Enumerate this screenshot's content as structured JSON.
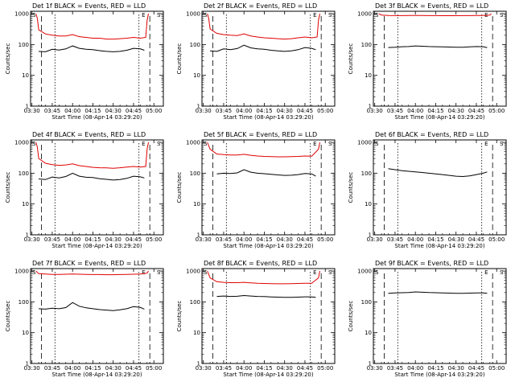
{
  "figure": {
    "colors": {
      "events": "#000000",
      "lld": "#e00000"
    },
    "marker_start": "S",
    "marker_end": "E",
    "ylabel": "Counts/sec",
    "xlabel": "Start Time (08-Apr-14 03:29:20)",
    "x_ticks": [
      "03:30",
      "03:45",
      "04:00",
      "04:15",
      "04:30",
      "04:45",
      "05:00"
    ],
    "y_ticks": [
      "1",
      "10",
      "100",
      "1000"
    ]
  },
  "chart_data": [
    {
      "type": "line",
      "title": "Det 1f BLACK = Events, RED = LLD",
      "xlabel": "Start Time (08-Apr-14 03:29:20)",
      "ylabel": "Counts/sec",
      "ylog": true,
      "xlim": [
        "03:29",
        "05:07"
      ],
      "ylim": [
        1,
        1200
      ],
      "lines_dashed": [
        "03:37",
        "04:57"
      ],
      "lines_dotted": [
        "03:47",
        "04:49"
      ],
      "series": [
        {
          "name": "Events",
          "color": "#000000",
          "x": [
            "03:35",
            "03:40",
            "03:45",
            "03:50",
            "03:55",
            "04:00",
            "04:05",
            "04:10",
            "04:15",
            "04:20",
            "04:25",
            "04:30",
            "04:35",
            "04:40",
            "04:45",
            "04:50",
            "04:53"
          ],
          "y": [
            60,
            58,
            70,
            66,
            72,
            90,
            75,
            70,
            68,
            63,
            60,
            58,
            60,
            65,
            75,
            72,
            65
          ]
        },
        {
          "name": "LLD",
          "color": "#e00000",
          "x": [
            "03:33",
            "03:34",
            "03:35",
            "03:40",
            "03:45",
            "03:50",
            "03:55",
            "04:00",
            "04:05",
            "04:10",
            "04:15",
            "04:20",
            "04:25",
            "04:30",
            "04:35",
            "04:40",
            "04:45",
            "04:50",
            "04:54",
            "04:55",
            "04:56"
          ],
          "y": [
            1000,
            700,
            300,
            220,
            200,
            190,
            190,
            210,
            180,
            170,
            160,
            160,
            150,
            150,
            155,
            160,
            170,
            160,
            170,
            600,
            1000
          ]
        }
      ]
    },
    {
      "type": "line",
      "title": "Det 2f BLACK = Events, RED = LLD",
      "xlabel": "Start Time (08-Apr-14 03:29:20)",
      "ylabel": "Counts/sec",
      "ylog": true,
      "xlim": [
        "03:29",
        "05:07"
      ],
      "ylim": [
        1,
        1200
      ],
      "lines_dashed": [
        "03:37",
        "04:57"
      ],
      "lines_dotted": [
        "03:47",
        "04:49"
      ],
      "series": [
        {
          "name": "Events",
          "color": "#000000",
          "x": [
            "03:35",
            "03:40",
            "03:45",
            "03:50",
            "03:55",
            "04:00",
            "04:05",
            "04:10",
            "04:15",
            "04:20",
            "04:25",
            "04:30",
            "04:35",
            "04:40",
            "04:45",
            "04:50",
            "04:53"
          ],
          "y": [
            62,
            60,
            72,
            68,
            74,
            95,
            78,
            72,
            70,
            65,
            62,
            60,
            62,
            68,
            80,
            75,
            68
          ]
        },
        {
          "name": "LLD",
          "color": "#e00000",
          "x": [
            "03:33",
            "03:34",
            "03:35",
            "03:40",
            "03:45",
            "03:50",
            "03:55",
            "04:00",
            "04:05",
            "04:10",
            "04:15",
            "04:20",
            "04:25",
            "04:30",
            "04:35",
            "04:40",
            "04:45",
            "04:50",
            "04:54",
            "04:55",
            "04:56"
          ],
          "y": [
            1000,
            700,
            320,
            230,
            210,
            200,
            195,
            220,
            190,
            175,
            165,
            160,
            155,
            150,
            155,
            165,
            175,
            165,
            175,
            620,
            1000
          ]
        }
      ]
    },
    {
      "type": "line",
      "title": "Det 3f BLACK = Events, RED = LLD",
      "xlabel": "Start Time (08-Apr-14 03:29:20)",
      "ylabel": "Counts/sec",
      "ylog": true,
      "xlim": [
        "03:29",
        "05:07"
      ],
      "ylim": [
        1,
        1200
      ],
      "lines_dashed": [
        "03:37",
        "04:57"
      ],
      "lines_dotted": [
        "03:47",
        "04:49"
      ],
      "series": [
        {
          "name": "Events",
          "color": "#000000",
          "x": [
            "03:40",
            "03:45",
            "03:50",
            "03:55",
            "04:00",
            "04:05",
            "04:10",
            "04:15",
            "04:20",
            "04:25",
            "04:30",
            "04:35",
            "04:40",
            "04:45",
            "04:50",
            "04:53"
          ],
          "y": [
            80,
            82,
            85,
            86,
            90,
            88,
            86,
            85,
            84,
            83,
            82,
            82,
            84,
            86,
            85,
            80
          ]
        },
        {
          "name": "LLD",
          "color": "#e00000",
          "x": [
            "03:33",
            "03:35",
            "03:40",
            "03:45",
            "03:50",
            "03:55",
            "04:00",
            "04:05",
            "04:10",
            "04:15",
            "04:20",
            "04:25",
            "04:30",
            "04:35",
            "04:40",
            "04:45",
            "04:50",
            "04:55",
            "04:56"
          ],
          "y": [
            1000,
            900,
            880,
            870,
            870,
            875,
            880,
            875,
            870,
            865,
            860,
            860,
            860,
            865,
            870,
            875,
            880,
            900,
            1000
          ]
        }
      ]
    },
    {
      "type": "line",
      "title": "Det 4f BLACK = Events, RED = LLD",
      "xlabel": "Start Time (08-Apr-14 03:29:20)",
      "ylabel": "Counts/sec",
      "ylog": true,
      "xlim": [
        "03:29",
        "05:07"
      ],
      "ylim": [
        1,
        1200
      ],
      "lines_dashed": [
        "03:37",
        "04:57"
      ],
      "lines_dotted": [
        "03:47",
        "04:49"
      ],
      "series": [
        {
          "name": "Events",
          "color": "#000000",
          "x": [
            "03:35",
            "03:40",
            "03:45",
            "03:50",
            "03:55",
            "04:00",
            "04:05",
            "04:10",
            "04:15",
            "04:20",
            "04:25",
            "04:30",
            "04:35",
            "04:40",
            "04:45",
            "04:50",
            "04:53"
          ],
          "y": [
            65,
            62,
            75,
            70,
            78,
            100,
            80,
            74,
            72,
            66,
            63,
            60,
            62,
            68,
            80,
            76,
            70
          ]
        },
        {
          "name": "LLD",
          "color": "#e00000",
          "x": [
            "03:33",
            "03:34",
            "03:35",
            "03:40",
            "03:45",
            "03:50",
            "03:55",
            "04:00",
            "04:05",
            "04:10",
            "04:15",
            "04:20",
            "04:25",
            "04:30",
            "04:35",
            "04:40",
            "04:45",
            "04:50",
            "04:54",
            "04:55",
            "04:56"
          ],
          "y": [
            1000,
            700,
            300,
            210,
            190,
            180,
            185,
            200,
            175,
            165,
            155,
            150,
            148,
            145,
            150,
            158,
            165,
            158,
            165,
            600,
            1000
          ]
        }
      ]
    },
    {
      "type": "line",
      "title": "Det 5f BLACK = Events, RED = LLD",
      "xlabel": "Start Time (08-Apr-14 03:29:20)",
      "ylabel": "Counts/sec",
      "ylog": true,
      "xlim": [
        "03:29",
        "05:07"
      ],
      "ylim": [
        1,
        1200
      ],
      "lines_dashed": [
        "03:37",
        "04:57"
      ],
      "lines_dotted": [
        "03:47",
        "04:49"
      ],
      "series": [
        {
          "name": "Events",
          "color": "#000000",
          "x": [
            "03:40",
            "03:45",
            "03:50",
            "03:55",
            "04:00",
            "04:05",
            "04:10",
            "04:15",
            "04:20",
            "04:25",
            "04:30",
            "04:35",
            "04:40",
            "04:45",
            "04:50",
            "04:53"
          ],
          "y": [
            95,
            100,
            98,
            102,
            130,
            108,
            100,
            96,
            92,
            88,
            85,
            86,
            90,
            98,
            95,
            80
          ]
        },
        {
          "name": "LLD",
          "color": "#e00000",
          "x": [
            "03:33",
            "03:35",
            "03:40",
            "03:45",
            "03:50",
            "03:55",
            "04:00",
            "04:05",
            "04:10",
            "04:15",
            "04:20",
            "04:25",
            "04:30",
            "04:35",
            "04:40",
            "04:45",
            "04:50",
            "04:55",
            "04:56"
          ],
          "y": [
            1000,
            600,
            420,
            400,
            390,
            390,
            410,
            380,
            360,
            350,
            345,
            340,
            340,
            345,
            350,
            360,
            355,
            600,
            1000
          ]
        }
      ]
    },
    {
      "type": "line",
      "title": "Det 6f BLACK = Events, RED = LLD",
      "xlabel": "Start Time (08-Apr-14 03:29:20)",
      "ylabel": "Counts/sec",
      "ylog": true,
      "xlim": [
        "03:29",
        "05:07"
      ],
      "ylim": [
        1,
        1200
      ],
      "lines_dashed": [
        "03:37",
        "04:57"
      ],
      "lines_dotted": [
        "03:47",
        "04:49"
      ],
      "series": [
        {
          "name": "Events",
          "color": "#000000",
          "x": [
            "03:40",
            "03:45",
            "03:50",
            "03:55",
            "04:00",
            "04:05",
            "04:10",
            "04:15",
            "04:20",
            "04:25",
            "04:30",
            "04:35",
            "04:40",
            "04:45",
            "04:50",
            "04:53"
          ],
          "y": [
            140,
            130,
            120,
            115,
            110,
            105,
            100,
            95,
            90,
            85,
            80,
            78,
            82,
            90,
            100,
            110
          ]
        }
      ]
    },
    {
      "type": "line",
      "title": "Det 7f BLACK = Events, RED = LLD",
      "xlabel": "Start Time (08-Apr-14 03:29:20)",
      "ylabel": "Counts/sec",
      "ylog": true,
      "xlim": [
        "03:29",
        "05:07"
      ],
      "ylim": [
        1,
        1200
      ],
      "lines_dashed": [
        "03:37",
        "04:57"
      ],
      "lines_dotted": [
        "03:47",
        "04:49"
      ],
      "series": [
        {
          "name": "Events",
          "color": "#000000",
          "x": [
            "03:35",
            "03:40",
            "03:45",
            "03:50",
            "03:55",
            "04:00",
            "04:05",
            "04:10",
            "04:15",
            "04:20",
            "04:25",
            "04:30",
            "04:35",
            "04:40",
            "04:45",
            "04:50",
            "04:53"
          ],
          "y": [
            60,
            58,
            62,
            60,
            65,
            95,
            72,
            64,
            60,
            56,
            54,
            52,
            55,
            60,
            70,
            66,
            58
          ]
        },
        {
          "name": "LLD",
          "color": "#e00000",
          "x": [
            "03:33",
            "03:35",
            "03:40",
            "03:45",
            "03:50",
            "03:55",
            "04:00",
            "04:05",
            "04:10",
            "04:15",
            "04:20",
            "04:25",
            "04:30",
            "04:35",
            "04:40",
            "04:45",
            "04:50",
            "04:55",
            "04:56"
          ],
          "y": [
            1000,
            820,
            800,
            780,
            780,
            790,
            800,
            790,
            780,
            770,
            770,
            760,
            760,
            770,
            780,
            790,
            800,
            850,
            1000
          ]
        }
      ]
    },
    {
      "type": "line",
      "title": "Det 8f BLACK = Events, RED = LLD",
      "xlabel": "Start Time (08-Apr-14 03:29:20)",
      "ylabel": "Counts/sec",
      "ylog": true,
      "xlim": [
        "03:29",
        "05:07"
      ],
      "ylim": [
        1,
        1200
      ],
      "lines_dashed": [
        "03:37",
        "04:57"
      ],
      "lines_dotted": [
        "03:47",
        "04:49"
      ],
      "series": [
        {
          "name": "Events",
          "color": "#000000",
          "x": [
            "03:40",
            "03:45",
            "03:50",
            "03:55",
            "04:00",
            "04:05",
            "04:10",
            "04:15",
            "04:20",
            "04:25",
            "04:30",
            "04:35",
            "04:40",
            "04:45",
            "04:50",
            "04:53"
          ],
          "y": [
            150,
            155,
            150,
            152,
            160,
            155,
            150,
            148,
            145,
            142,
            140,
            140,
            142,
            146,
            145,
            140
          ]
        },
        {
          "name": "LLD",
          "color": "#e00000",
          "x": [
            "03:33",
            "03:35",
            "03:40",
            "03:45",
            "03:50",
            "03:55",
            "04:00",
            "04:05",
            "04:10",
            "04:15",
            "04:20",
            "04:25",
            "04:30",
            "04:35",
            "04:40",
            "04:45",
            "04:50",
            "04:55",
            "04:56"
          ],
          "y": [
            1000,
            600,
            450,
            430,
            420,
            420,
            430,
            415,
            400,
            395,
            390,
            385,
            385,
            390,
            395,
            400,
            400,
            600,
            1000
          ]
        }
      ]
    },
    {
      "type": "line",
      "title": "Det 9f BLACK = Events, RED = LLD",
      "xlabel": "Start Time (08-Apr-14 03:29:20)",
      "ylabel": "Counts/sec",
      "ylog": true,
      "xlim": [
        "03:29",
        "05:07"
      ],
      "ylim": [
        1,
        1200
      ],
      "lines_dashed": [
        "03:37",
        "04:57"
      ],
      "lines_dotted": [
        "03:47",
        "04:49"
      ],
      "series": [
        {
          "name": "Events",
          "color": "#000000",
          "x": [
            "03:40",
            "03:45",
            "03:50",
            "03:55",
            "04:00",
            "04:05",
            "04:10",
            "04:15",
            "04:20",
            "04:25",
            "04:30",
            "04:35",
            "04:40",
            "04:45",
            "04:50",
            "04:53"
          ],
          "y": [
            190,
            195,
            198,
            200,
            210,
            205,
            200,
            198,
            195,
            192,
            190,
            190,
            192,
            195,
            195,
            190
          ]
        }
      ]
    }
  ]
}
